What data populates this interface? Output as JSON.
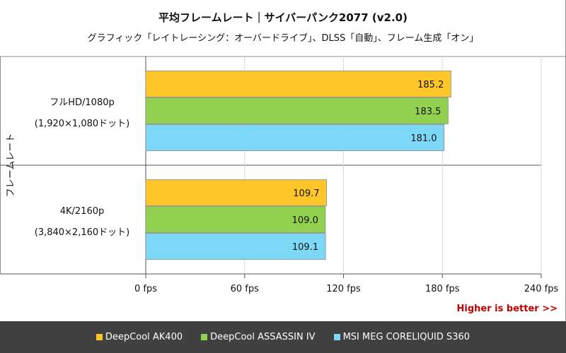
{
  "chart_data": {
    "type": "bar",
    "orientation": "horizontal",
    "title": "平均フレームレート｜サイバーパンク2077 (v2.0)",
    "subtitle": "グラフィック「レイトレーシング：オーバードライブ」、DLSS「自動」、フレーム生成「オン」",
    "ylabel": "フレームレート",
    "categories": [
      {
        "line1": "フルHD/1080p",
        "line2": "(1,920×1,080ドット)"
      },
      {
        "line1": "4K/2160p",
        "line2": "(3,840×2,160ドット)"
      }
    ],
    "series": [
      {
        "name": "DeepCool AK400",
        "color": "#ffc629",
        "values": [
          185.2,
          109.7
        ],
        "labels": [
          "185.2",
          "109.7"
        ]
      },
      {
        "name": "DeepCool ASSASSIN IV",
        "color": "#92d050",
        "values": [
          183.5,
          109.0
        ],
        "labels": [
          "183.5",
          "109.0"
        ]
      },
      {
        "name": "MSI MEG CORELIQUID S360",
        "color": "#7dd8f7",
        "values": [
          181.0,
          109.1
        ],
        "labels": [
          "181.0",
          "109.1"
        ]
      }
    ],
    "xlim": [
      0,
      240
    ],
    "xticks": [
      0,
      60,
      120,
      180,
      240
    ],
    "xtick_labels": [
      "0 fps",
      "60 fps",
      "120 fps",
      "180 fps",
      "240 fps"
    ],
    "legend_position": "bottom",
    "note": "Higher is better >>"
  }
}
